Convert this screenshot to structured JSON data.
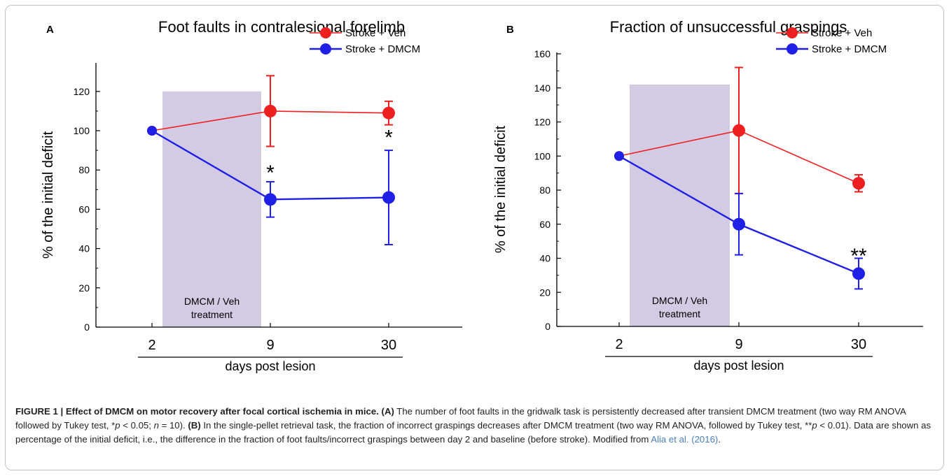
{
  "colors": {
    "veh": "#ee1f1f",
    "dmcm": "#1f1fe6",
    "treatment_band": "#d3cbe4",
    "caption_link": "#4a7fb5"
  },
  "chart_data": [
    {
      "type": "line",
      "panel_label": "A",
      "title": "Foot faults in contralesional forelimb",
      "xlabel": "days post lesion",
      "ylabel": "% of the initial deficit",
      "categories": [
        "2",
        "9",
        "30"
      ],
      "ylim": [
        0,
        130
      ],
      "yticks": [
        "0",
        "20",
        "40",
        "60",
        "80",
        "100",
        "120"
      ],
      "treatment_band": {
        "x_range": [
          "2",
          "9"
        ],
        "label_line1": "DMCM / Veh",
        "label_line2": "treatment",
        "y_top": 120
      },
      "legend_position": "top-right",
      "series": [
        {
          "name": "Stroke + Veh",
          "color": "#ee1f1f",
          "values": [
            100,
            110,
            109
          ],
          "err_up": [
            0,
            18,
            6
          ],
          "err_down": [
            0,
            18,
            6
          ]
        },
        {
          "name": "Stroke + DMCM",
          "color": "#1f1fe6",
          "values": [
            100,
            65,
            66
          ],
          "err_up": [
            0,
            9,
            24
          ],
          "err_down": [
            0,
            9,
            24
          ]
        }
      ],
      "annotations": [
        {
          "category": "9",
          "y": 80,
          "text": "*"
        },
        {
          "category": "30",
          "y": 98,
          "text": "*"
        }
      ]
    },
    {
      "type": "line",
      "panel_label": "B",
      "title": "Fraction of unsuccessful graspings",
      "xlabel": "days post lesion",
      "ylabel": "% of the initial deficit",
      "categories": [
        "2",
        "9",
        "30"
      ],
      "ylim": [
        0,
        165
      ],
      "yticks": [
        "0",
        "20",
        "40",
        "60",
        "80",
        "100",
        "120",
        "140",
        "160"
      ],
      "treatment_band": {
        "x_range": [
          "2",
          "9"
        ],
        "label_line1": "DMCM / Veh",
        "label_line2": "treatment",
        "y_top": 142
      },
      "legend_position": "top-right",
      "series": [
        {
          "name": "Stroke + Veh",
          "color": "#ee1f1f",
          "values": [
            100,
            115,
            84
          ],
          "err_up": [
            0,
            37,
            5
          ],
          "err_down": [
            0,
            37,
            5
          ]
        },
        {
          "name": "Stroke + DMCM",
          "color": "#1f1fe6",
          "values": [
            100,
            60,
            31
          ],
          "err_up": [
            0,
            18,
            9
          ],
          "err_down": [
            0,
            18,
            9
          ]
        }
      ],
      "annotations": [
        {
          "category": "30",
          "y": 43,
          "text": "**"
        }
      ]
    }
  ],
  "caption": {
    "figure_label": "FIGURE 1 | Effect of DMCM on motor recovery after focal cortical ischemia in mice.",
    "a_label": "(A)",
    "a_text_1": " The number of foot faults in the gridwalk task is persistently decreased after transient DMCM treatment (two way RM ANOVA followed by Tukey test, *",
    "a_p": "p",
    "a_text_2": " < 0.05; ",
    "a_n": "n",
    "a_text_3": " = 10). ",
    "b_label": "(B)",
    "b_text_1": " In the single-pellet retrieval task, the fraction of incorrect graspings decreases after DMCM treatment (two way RM ANOVA, followed by Tukey test, **",
    "b_p": "p",
    "b_text_2": " < 0.01). Data are shown as percentage of the initial deficit, i.e., the difference in the fraction of foot faults/incorrect graspings between day 2 and baseline (before stroke). Modified from ",
    "citation": "Alia et al. (2016)",
    "end": "."
  }
}
